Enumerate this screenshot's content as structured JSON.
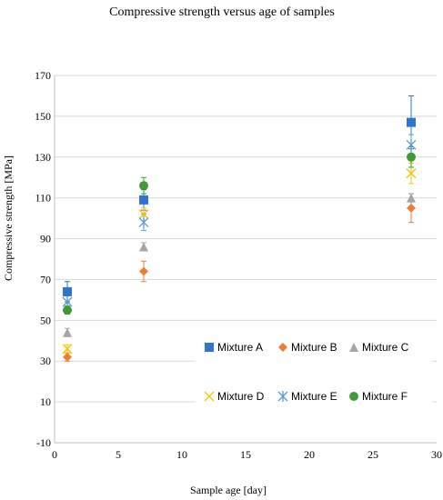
{
  "chart_data": {
    "type": "scatter",
    "title": "Compressive strength versus age of samples",
    "xlabel": "Sample age [day]",
    "ylabel": "Compressive strength [MPa]",
    "xlim": [
      0,
      30
    ],
    "ylim": [
      -10,
      170
    ],
    "x_ticks": [
      "0",
      "5",
      "10",
      "15",
      "20",
      "25",
      "30"
    ],
    "y_ticks": [
      "-10",
      "10",
      "30",
      "50",
      "70",
      "90",
      "110",
      "130",
      "150",
      "170"
    ],
    "grid": "horizontal",
    "legend_position": "bottom-right",
    "series": [
      {
        "name": "Mixture A",
        "color": "#2E75D2",
        "marker": "square",
        "points": [
          {
            "x": 1,
            "y": 64,
            "err": 5
          },
          {
            "x": 7,
            "y": 109,
            "err": 5
          },
          {
            "x": 28,
            "y": 147,
            "err": 13
          }
        ]
      },
      {
        "name": "Mixture B",
        "color": "#ED7D31",
        "marker": "diamond",
        "points": [
          {
            "x": 1,
            "y": 32,
            "err": 2
          },
          {
            "x": 7,
            "y": 74,
            "err": 5
          },
          {
            "x": 28,
            "y": 105,
            "err": 7
          }
        ]
      },
      {
        "name": "Mixture C",
        "color": "#A5A5A5",
        "marker": "triangle",
        "points": [
          {
            "x": 1,
            "y": 44,
            "err": 2
          },
          {
            "x": 7,
            "y": 86,
            "err": 2
          },
          {
            "x": 28,
            "y": 110,
            "err": 2
          }
        ]
      },
      {
        "name": "Mixture D",
        "color": "#FFC000",
        "marker": "x",
        "points": [
          {
            "x": 1,
            "y": 36,
            "err": 2
          },
          {
            "x": 7,
            "y": 102,
            "err": 3
          },
          {
            "x": 28,
            "y": 122,
            "err": 5
          }
        ]
      },
      {
        "name": "Mixture E",
        "color": "#5B9BD5",
        "marker": "star",
        "points": [
          {
            "x": 1,
            "y": 59,
            "err": 3
          },
          {
            "x": 7,
            "y": 98,
            "err": 4
          },
          {
            "x": 28,
            "y": 136,
            "err": 5
          }
        ]
      },
      {
        "name": "Mixture F",
        "color": "#3F9B35",
        "marker": "circle",
        "points": [
          {
            "x": 1,
            "y": 55,
            "err": 2
          },
          {
            "x": 7,
            "y": 116,
            "err": 4
          },
          {
            "x": 28,
            "y": 130,
            "err": 5
          }
        ]
      }
    ]
  }
}
